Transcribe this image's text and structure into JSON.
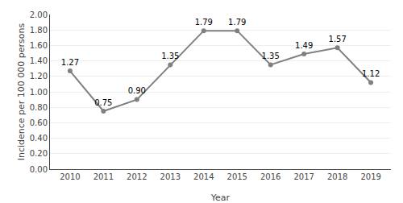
{
  "chart_data": {
    "type": "line",
    "x": [
      2010,
      2011,
      2012,
      2013,
      2014,
      2015,
      2016,
      2017,
      2018,
      2019
    ],
    "values": [
      1.27,
      0.75,
      0.9,
      1.35,
      1.79,
      1.79,
      1.35,
      1.49,
      1.57,
      1.12
    ],
    "value_labels": [
      "1.27",
      "0.75",
      "0.90",
      "1.35",
      "1.79",
      "1.79",
      "1.35",
      "1.49",
      "1.57",
      "1.12"
    ],
    "data_labels": true,
    "xlabel": "Year",
    "ylabel": "Incidence per 100 000 persons",
    "xlim": [
      2009.4,
      2019.6
    ],
    "xticks": [
      2010,
      2011,
      2012,
      2013,
      2014,
      2015,
      2016,
      2017,
      2018,
      2019
    ],
    "ylim": [
      0.0,
      2.0
    ],
    "yticks": [
      {
        "value": 0.0,
        "label": "0.00"
      },
      {
        "value": 0.2,
        "label": "0.20"
      },
      {
        "value": 0.4,
        "label": "0.40"
      },
      {
        "value": 0.6,
        "label": "0.60"
      },
      {
        "value": 0.8,
        "label": "0.80"
      },
      {
        "value": 1.0,
        "label": "1.00"
      },
      {
        "value": 1.2,
        "label": "1.20"
      },
      {
        "value": 1.4,
        "label": "1.40"
      },
      {
        "value": 1.6,
        "label": "1.60"
      },
      {
        "value": 1.8,
        "label": "1.80"
      },
      {
        "value": 2.0,
        "label": "2.00"
      }
    ],
    "color": "#808080",
    "marker": "circle",
    "line_style": "solid",
    "grid": true
  }
}
